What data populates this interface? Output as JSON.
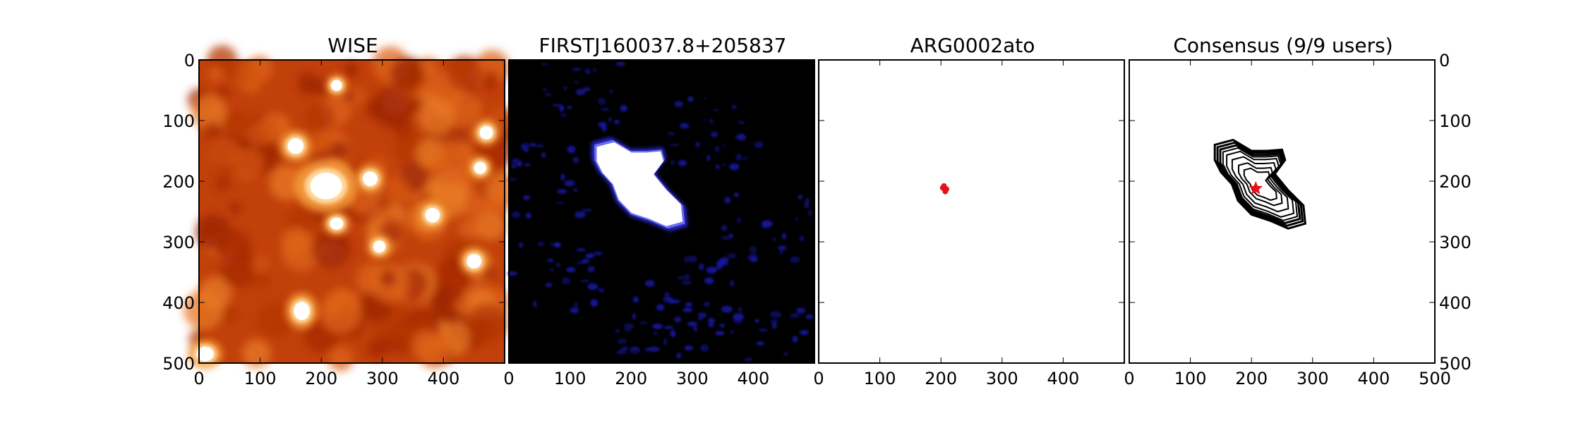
{
  "chart_data": [
    {
      "type": "heatmap",
      "title": "WISE",
      "xlim": [
        0,
        500
      ],
      "ylim": [
        500,
        0
      ],
      "x_ticks": [
        0,
        100,
        200,
        300,
        400
      ],
      "y_ticks": [
        0,
        100,
        200,
        300,
        400,
        500
      ],
      "y_axis_labels": "left",
      "colormap": "gist_heat",
      "colors": {
        "background": "#c2410b",
        "highlight": "#ffffff"
      },
      "sources": [
        {
          "x": 208,
          "y": 208,
          "rx": 26,
          "ry": 22
        },
        {
          "x": 158,
          "y": 142,
          "rx": 13,
          "ry": 13
        },
        {
          "x": 280,
          "y": 196,
          "rx": 12,
          "ry": 12
        },
        {
          "x": 382,
          "y": 256,
          "rx": 12,
          "ry": 12
        },
        {
          "x": 450,
          "y": 332,
          "rx": 12,
          "ry": 12
        },
        {
          "x": 168,
          "y": 414,
          "rx": 13,
          "ry": 15
        },
        {
          "x": 470,
          "y": 120,
          "rx": 11,
          "ry": 11
        },
        {
          "x": 10,
          "y": 485,
          "rx": 14,
          "ry": 12
        },
        {
          "x": 295,
          "y": 308,
          "rx": 10,
          "ry": 10
        },
        {
          "x": 225,
          "y": 270,
          "rx": 11,
          "ry": 10
        },
        {
          "x": 460,
          "y": 178,
          "rx": 10,
          "ry": 10
        },
        {
          "x": 225,
          "y": 42,
          "rx": 9,
          "ry": 9
        }
      ]
    },
    {
      "type": "heatmap",
      "title": "FIRSTJ160037.8+205837",
      "xlim": [
        0,
        500
      ],
      "ylim": [
        500,
        0
      ],
      "x_ticks": [
        0,
        100,
        200,
        300,
        400
      ],
      "colormap": "blue",
      "colors": {
        "background": "#000000",
        "noise": "#1a1ab4",
        "source": "#ffffff"
      },
      "source_outline": [
        [
          140,
          140
        ],
        [
          170,
          132
        ],
        [
          200,
          150
        ],
        [
          225,
          150
        ],
        [
          250,
          148
        ],
        [
          255,
          165
        ],
        [
          238,
          188
        ],
        [
          260,
          215
        ],
        [
          285,
          240
        ],
        [
          288,
          270
        ],
        [
          260,
          278
        ],
        [
          230,
          265
        ],
        [
          200,
          255
        ],
        [
          178,
          232
        ],
        [
          168,
          205
        ],
        [
          150,
          185
        ],
        [
          140,
          165
        ]
      ]
    },
    {
      "type": "scatter",
      "title": "ARG0002ato",
      "xlim": [
        0,
        500
      ],
      "ylim": [
        500,
        0
      ],
      "x_ticks": [
        0,
        100,
        200,
        300,
        400
      ],
      "colors": {
        "marker": "#e8101a"
      },
      "points": [
        [
          205,
          208
        ],
        [
          209,
          213
        ],
        [
          207,
          217
        ],
        [
          203,
          211
        ]
      ]
    },
    {
      "type": "scatter",
      "title": "Consensus (9/9 users)",
      "xlim": [
        0,
        500
      ],
      "ylim": [
        500,
        0
      ],
      "x_ticks": [
        0,
        100,
        200,
        300,
        400,
        500
      ],
      "y_ticks": [
        0,
        100,
        200,
        300,
        400,
        500
      ],
      "y_axis_labels": "right",
      "colors": {
        "contour": "#000000",
        "marker": "#e8101a"
      },
      "contour_outline": [
        [
          140,
          140
        ],
        [
          170,
          132
        ],
        [
          200,
          150
        ],
        [
          225,
          150
        ],
        [
          250,
          148
        ],
        [
          255,
          165
        ],
        [
          238,
          188
        ],
        [
          260,
          215
        ],
        [
          285,
          240
        ],
        [
          288,
          270
        ],
        [
          260,
          278
        ],
        [
          230,
          265
        ],
        [
          200,
          255
        ],
        [
          178,
          232
        ],
        [
          168,
          205
        ],
        [
          150,
          185
        ],
        [
          140,
          165
        ]
      ],
      "contour_levels": [
        1.0,
        0.94,
        0.88,
        0.82,
        0.74,
        0.62,
        0.48,
        0.36
      ],
      "consensus_point": [
        207,
        212
      ]
    }
  ]
}
